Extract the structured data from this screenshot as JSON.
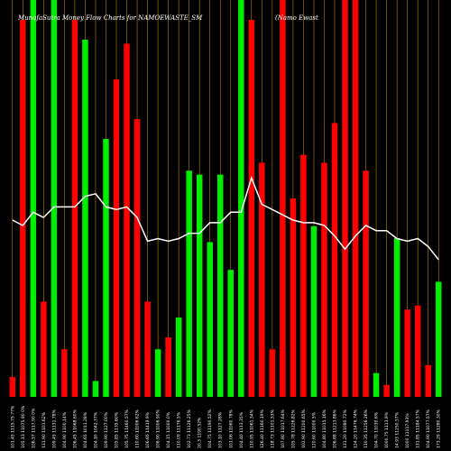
{
  "chart_data": {
    "type": "bar",
    "title_left": "MunafaSutra  Money Flow  Charts for NAMOEWASTE_SM",
    "title_right": "(Namo  Ewast",
    "colors": {
      "background": "#000000",
      "up": "#00ee00",
      "down": "#ff0000",
      "grid": "#b8860b",
      "line": "#ffffff"
    },
    "bar_axis": {
      "ylim": [
        0,
        100
      ]
    },
    "line_axis": {
      "ylim": [
        0,
        100
      ]
    },
    "categories": [
      "101.45 1115.75 77%",
      "105.13 11075.90 0%",
      "106.57 1117.90 0%",
      "131.90 1101.62%",
      "109.45 11131.78%",
      "104.90 1100.14%",
      "106.45 11068.60%",
      "104.65 1011.28%",
      "104.10 1042.37%",
      "109.90 1127.00%",
      "105.85 1135.60%",
      "105.75 11460.57%",
      "110.60 11006.62%",
      "106.65 11419.9%",
      "106.90 11006.90%",
      "104.15 11000.0%",
      "110.09 11176.5%",
      "102.73 11126.25%",
      "20.3 1190.52%",
      "104.75 11190.52%",
      "103.10 1127.28%",
      "101.06 11060.78%",
      "104.40 1113.35%",
      "110.95 11061.34%",
      "126.40 11160.19%",
      "118.73 11101.53%",
      "107.80 11017.64%",
      "105.78 11226.82%",
      "102.90 11200.65%",
      "120.60 11000.5%",
      "104.80 11015.16%",
      "106.88 11213.86%",
      "131.20 11080.72%",
      "124.20 11476.74%",
      "110.35 11256.26%",
      "104.70 11030.6%",
      "1000.75 1113.9%",
      "14.93 11250.57%",
      "1000 11117.93%",
      "131.85 11184.57%",
      "104.90 11077.57%",
      "173.29 11280.30%"
    ],
    "values": [
      5,
      95,
      100,
      24,
      100,
      12,
      95,
      90,
      4,
      65,
      80,
      89,
      70,
      24,
      12,
      15,
      20,
      57,
      56,
      39,
      56,
      32,
      100,
      95,
      59,
      12,
      100,
      50,
      61,
      43,
      59,
      69,
      100,
      100,
      57,
      6,
      3,
      40,
      22,
      23,
      8,
      29
    ],
    "directions": [
      "down",
      "down",
      "up",
      "down",
      "up",
      "down",
      "down",
      "up",
      "up",
      "up",
      "down",
      "down",
      "down",
      "down",
      "up",
      "down",
      "up",
      "up",
      "up",
      "up",
      "up",
      "up",
      "up",
      "down",
      "down",
      "down",
      "down",
      "down",
      "down",
      "up",
      "down",
      "down",
      "down",
      "down",
      "down",
      "up",
      "down",
      "up",
      "down",
      "down",
      "down",
      "up"
    ],
    "money_flow_line": [
      67,
      65,
      70,
      68,
      72,
      72,
      72,
      76,
      77,
      72,
      71,
      72,
      68,
      59,
      60,
      59,
      60,
      62,
      62,
      66,
      66,
      70,
      70,
      83,
      73,
      71,
      69,
      67,
      66,
      66,
      65,
      61,
      56,
      61,
      65,
      63,
      63,
      60,
      59,
      60,
      57,
      52
    ]
  }
}
